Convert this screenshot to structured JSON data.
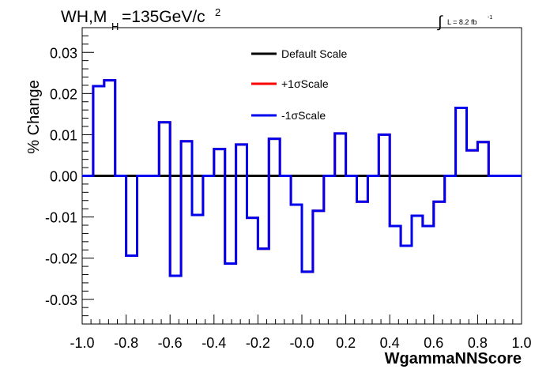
{
  "chart_data": {
    "type": "line",
    "title_main": "WH,M",
    "title_sub": "H",
    "title_rest": "=135GeV/c",
    "title_sup": "2",
    "lumi": {
      "integral": "∫",
      "text": "L = 8.2 fb",
      "sup": "-1"
    },
    "xlabel": "WgammaNNScore",
    "ylabel": "% Change",
    "xlim": [
      -1.0,
      1.0
    ],
    "ylim": [
      -0.036,
      0.036
    ],
    "x_ticks": [
      "-1.0",
      "-0.8",
      "-0.6",
      "-0.4",
      "-0.2",
      "-0.0",
      "0.2",
      "0.4",
      "0.6",
      "0.8",
      "1.0"
    ],
    "y_ticks": [
      "-0.03",
      "-0.02",
      "-0.01",
      "0.00",
      "0.01",
      "0.02",
      "0.03"
    ],
    "bin_edges": [
      -1.0,
      -0.95,
      -0.9,
      -0.85,
      -0.8,
      -0.75,
      -0.7,
      -0.65,
      -0.6,
      -0.55,
      -0.5,
      -0.45,
      -0.4,
      -0.35,
      -0.3,
      -0.25,
      -0.2,
      -0.15,
      -0.1,
      -0.05,
      0.0,
      0.05,
      0.1,
      0.15,
      0.2,
      0.25,
      0.3,
      0.35,
      0.4,
      0.45,
      0.5,
      0.55,
      0.6,
      0.65,
      0.7,
      0.75,
      0.8,
      0.85,
      0.9,
      0.95,
      1.0
    ],
    "series": [
      {
        "name": "Default Scale",
        "color": "#000000",
        "values": [
          0,
          0,
          0,
          0,
          0,
          0,
          0,
          0,
          0,
          0,
          0,
          0,
          0,
          0,
          0,
          0,
          0,
          0,
          0,
          0,
          0,
          0,
          0,
          0,
          0,
          0,
          0,
          0,
          0,
          0,
          0,
          0,
          0,
          0,
          0,
          0,
          0,
          0,
          0,
          0
        ]
      },
      {
        "name": "+1σScale",
        "color": "#ff0000",
        "values": [
          0,
          0.0218,
          0.0232,
          0,
          -0.0194,
          0,
          0,
          0.013,
          -0.0243,
          0.0084,
          -0.0095,
          0,
          0.0065,
          -0.0213,
          0.0076,
          -0.0102,
          -0.0177,
          0.009,
          0,
          -0.007,
          -0.0233,
          -0.0085,
          0,
          0.0103,
          0,
          -0.0063,
          0,
          0.01,
          -0.0122,
          -0.017,
          -0.0097,
          -0.0122,
          -0.0063,
          0,
          0.0165,
          0.0062,
          0.0082,
          0,
          0,
          0
        ]
      },
      {
        "name": "-1σScale",
        "color": "#0000ee",
        "values": [
          0,
          0.0218,
          0.0232,
          0,
          -0.0194,
          0,
          0,
          0.013,
          -0.0243,
          0.0084,
          -0.0095,
          0,
          0.0065,
          -0.0213,
          0.0076,
          -0.0102,
          -0.0177,
          0.009,
          0,
          -0.007,
          -0.0233,
          -0.0085,
          0,
          0.0103,
          0,
          -0.0063,
          0,
          0.01,
          -0.0122,
          -0.017,
          -0.0097,
          -0.0122,
          -0.0063,
          0,
          0.0165,
          0.0062,
          0.0082,
          0,
          0,
          0
        ]
      }
    ],
    "legend_position": "top-center",
    "grid": false
  }
}
